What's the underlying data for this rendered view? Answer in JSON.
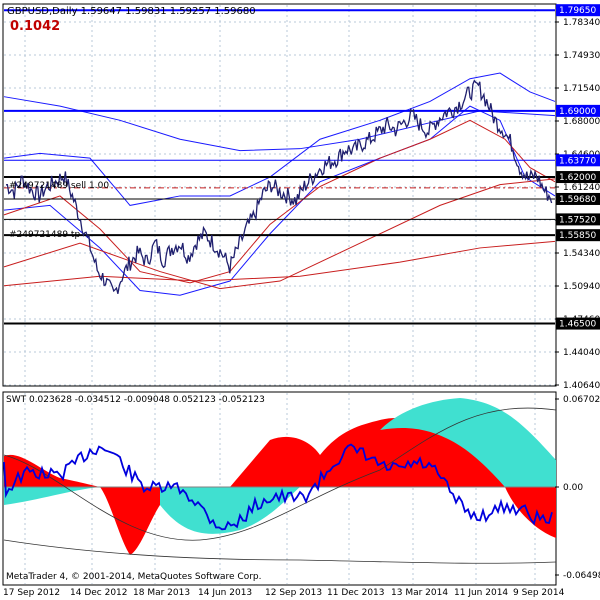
{
  "header": {
    "symbol_line": "GBPUSD,Daily  1.59647 1.59831 1.59257 1.59680",
    "indicator_value": "0.1042"
  },
  "price_axis": {
    "ticks": [
      "1.78340",
      "1.74930",
      "1.71540",
      "1.68000",
      "1.64600",
      "1.61240",
      "1.57770",
      "1.54340",
      "1.50940",
      "1.47460",
      "1.44040",
      "1.40640"
    ]
  },
  "hlines": [
    {
      "label": "1.79650",
      "price": 1.7965,
      "color": "#0000ff",
      "bold": true
    },
    {
      "label": "1.69000",
      "price": 1.69,
      "color": "#0000ff",
      "bold": true
    },
    {
      "label": "1.63770",
      "price": 1.6377,
      "color": "#0000ff",
      "bold": false
    },
    {
      "label": "1.62000",
      "price": 1.62,
      "color": "#000000",
      "bold": true
    },
    {
      "label": "1.59680",
      "price": 1.5968,
      "color": "#000000",
      "bold": false
    },
    {
      "label": "1.57520",
      "price": 1.5752,
      "color": "#000000",
      "bold": false
    },
    {
      "label": "1.55850",
      "price": 1.5585,
      "color": "#000000",
      "bold": true
    },
    {
      "label": "1.46500",
      "price": 1.465,
      "color": "#000000",
      "bold": true
    }
  ],
  "order_labels": {
    "entry": "#249721489 sell 1.00",
    "tp": "#249721489 tp"
  },
  "sub_window": {
    "title": "SWT 0.023628 -0.034512 -0.009048 0.052123 -0.052123",
    "ticks": [
      "0.067025",
      "0.00",
      "-0.064987"
    ]
  },
  "copyright": "MetaTrader 4, © 2001-2014, MetaQuotes Software Corp.",
  "date_axis": [
    "17 Sep 2012",
    "14 Dec 2012",
    "18 Mar 2013",
    "14 Jun 2013",
    "12 Sep 2013",
    "11 Dec 2013",
    "13 Mar 2014",
    "11 Jun 2014",
    "9 Sep 2014"
  ],
  "colors": {
    "price_line": "#1f1f6e",
    "support_resistance": "#0000ff",
    "ma_red": "#c81e1e",
    "swt_red": "#ff0000",
    "swt_cyan": "#40e0d0",
    "swt_blue": "#0000dd"
  },
  "chart_data": {
    "type": "line",
    "title": "GBPUSD,Daily",
    "x": [
      "17 Sep 2012",
      "14 Dec 2012",
      "18 Mar 2013",
      "14 Jun 2013",
      "12 Sep 2013",
      "11 Dec 2013",
      "13 Mar 2014",
      "11 Jun 2014",
      "9 Sep 2014"
    ],
    "series": [
      {
        "name": "GBPUSD",
        "values": [
          1.612,
          1.615,
          1.505,
          1.57,
          1.578,
          1.64,
          1.68,
          1.705,
          1.62
        ]
      }
    ],
    "price_close": [
      1.612,
      1.605,
      1.618,
      1.607,
      1.6,
      1.61,
      1.615,
      1.622,
      1.6,
      1.575,
      1.55,
      1.522,
      1.51,
      1.495,
      1.515,
      1.53,
      1.54,
      1.53,
      1.55,
      1.532,
      1.545,
      1.55,
      1.535,
      1.552,
      1.56,
      1.55,
      1.54,
      1.525,
      1.545,
      1.565,
      1.58,
      1.602,
      1.612,
      1.605,
      1.6,
      1.595,
      1.61,
      1.62,
      1.63,
      1.635,
      1.64,
      1.65,
      1.648,
      1.655,
      1.66,
      1.668,
      1.675,
      1.67,
      1.678,
      1.685,
      1.675,
      1.668,
      1.68,
      1.688,
      1.692,
      1.7,
      1.71,
      1.716,
      1.7,
      1.68,
      1.67,
      1.655,
      1.63,
      1.618,
      1.622,
      1.605,
      1.596
    ],
    "ylim": [
      1.4,
      1.802
    ]
  }
}
